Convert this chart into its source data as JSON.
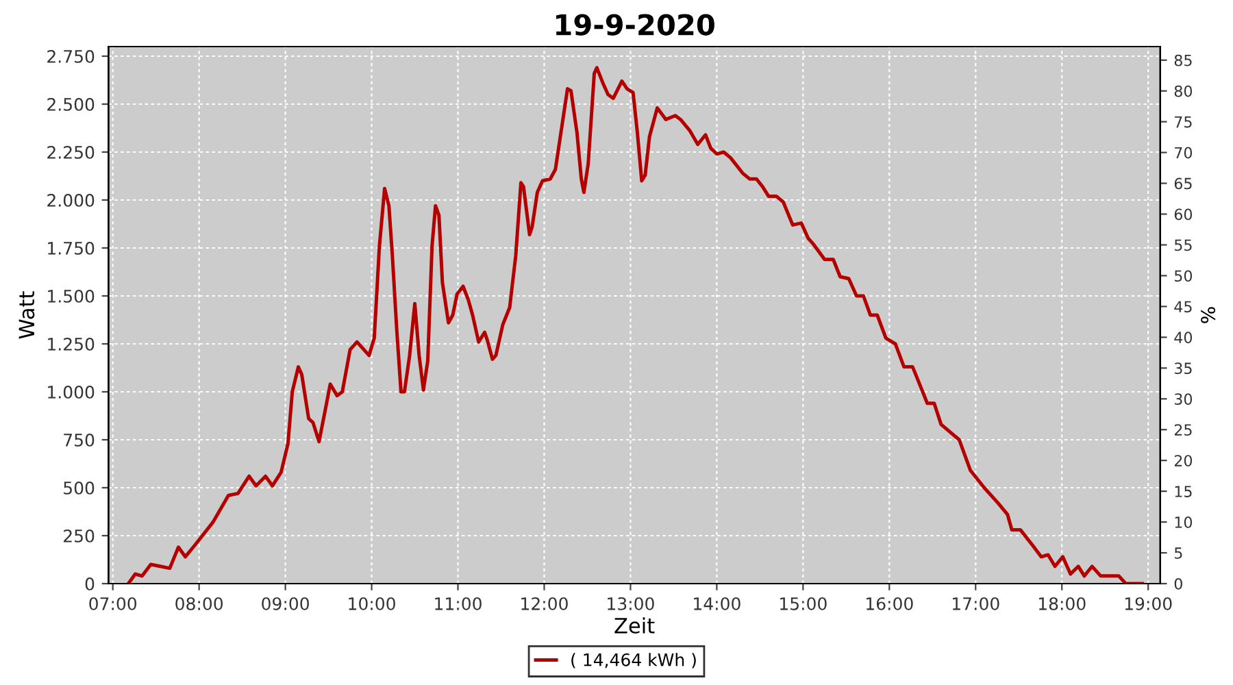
{
  "chart_data": {
    "type": "line",
    "title": "19-9-2020",
    "xlabel": "Zeit",
    "ylabel": "Watt",
    "y2label": "%",
    "x": [
      7.18,
      7.26,
      7.34,
      7.44,
      7.55,
      7.66,
      7.76,
      7.84,
      7.95,
      8.16,
      8.34,
      8.45,
      8.58,
      8.66,
      8.77,
      8.85,
      8.95,
      9.03,
      9.08,
      9.15,
      9.19,
      9.27,
      9.32,
      9.39,
      9.46,
      9.52,
      9.6,
      9.66,
      9.75,
      9.83,
      9.97,
      10.03,
      10.09,
      10.15,
      10.2,
      10.24,
      10.29,
      10.34,
      10.38,
      10.44,
      10.5,
      10.55,
      10.6,
      10.65,
      10.7,
      10.74,
      10.78,
      10.82,
      10.89,
      10.94,
      10.99,
      11.06,
      11.12,
      11.17,
      11.24,
      11.31,
      11.34,
      11.4,
      11.44,
      11.52,
      11.6,
      11.67,
      11.73,
      11.76,
      11.83,
      11.86,
      11.92,
      11.98,
      12.07,
      12.13,
      12.18,
      12.27,
      12.31,
      12.38,
      12.43,
      12.46,
      12.51,
      12.58,
      12.61,
      12.68,
      12.74,
      12.8,
      12.9,
      12.96,
      13.03,
      13.08,
      13.13,
      13.17,
      13.22,
      13.31,
      13.41,
      13.52,
      13.58,
      13.69,
      13.78,
      13.87,
      13.93,
      14.0,
      14.08,
      14.16,
      14.3,
      14.38,
      14.46,
      14.53,
      14.6,
      14.69,
      14.77,
      14.88,
      14.98,
      15.06,
      15.12,
      15.25,
      15.35,
      15.43,
      15.53,
      15.62,
      15.7,
      15.78,
      15.86,
      15.96,
      16.07,
      16.17,
      16.27,
      16.36,
      16.44,
      16.52,
      16.6,
      16.81,
      16.94,
      17.1,
      17.26,
      17.37,
      17.42,
      17.52,
      17.66,
      17.76,
      17.84,
      17.92,
      18.01,
      18.1,
      18.19,
      18.26,
      18.35,
      18.45,
      18.66,
      18.74,
      18.93
    ],
    "series": [
      {
        "name": "( 14,464 kWh )",
        "color": "#b50000",
        "values": [
          0,
          50,
          40,
          100,
          90,
          80,
          190,
          140,
          200,
          320,
          460,
          470,
          560,
          510,
          560,
          510,
          580,
          730,
          1000,
          1130,
          1090,
          860,
          840,
          740,
          900,
          1040,
          980,
          1000,
          1220,
          1260,
          1190,
          1280,
          1760,
          2060,
          1970,
          1710,
          1330,
          1000,
          1000,
          1190,
          1460,
          1190,
          1010,
          1160,
          1760,
          1970,
          1920,
          1570,
          1360,
          1400,
          1510,
          1550,
          1480,
          1400,
          1260,
          1310,
          1270,
          1170,
          1190,
          1350,
          1440,
          1710,
          2090,
          2070,
          1820,
          1860,
          2040,
          2100,
          2110,
          2160,
          2310,
          2580,
          2570,
          2350,
          2110,
          2040,
          2190,
          2660,
          2690,
          2610,
          2550,
          2530,
          2620,
          2580,
          2560,
          2350,
          2100,
          2130,
          2330,
          2480,
          2420,
          2440,
          2420,
          2360,
          2290,
          2340,
          2270,
          2240,
          2250,
          2220,
          2140,
          2110,
          2110,
          2070,
          2020,
          2020,
          1990,
          1870,
          1880,
          1800,
          1770,
          1690,
          1690,
          1600,
          1590,
          1500,
          1500,
          1400,
          1400,
          1280,
          1250,
          1130,
          1130,
          1030,
          940,
          940,
          830,
          750,
          590,
          500,
          420,
          360,
          280,
          280,
          200,
          140,
          150,
          90,
          140,
          50,
          90,
          40,
          90,
          40,
          40,
          0,
          0
        ]
      }
    ],
    "xlim": [
      6.95,
      19.14
    ],
    "ylim": [
      0,
      2800
    ],
    "y2lim": [
      0,
      87.2
    ],
    "xticks": [
      {
        "value": 7,
        "label": "07:00"
      },
      {
        "value": 8,
        "label": "08:00"
      },
      {
        "value": 9,
        "label": "09:00"
      },
      {
        "value": 10,
        "label": "10:00"
      },
      {
        "value": 11,
        "label": "11:00"
      },
      {
        "value": 12,
        "label": "12:00"
      },
      {
        "value": 13,
        "label": "13:00"
      },
      {
        "value": 14,
        "label": "14:00"
      },
      {
        "value": 15,
        "label": "15:00"
      },
      {
        "value": 16,
        "label": "16:00"
      },
      {
        "value": 17,
        "label": "17:00"
      },
      {
        "value": 18,
        "label": "18:00"
      },
      {
        "value": 19,
        "label": "19:00"
      }
    ],
    "yticks": [
      0,
      250,
      500,
      750,
      {
        "value": 1000,
        "label": "1.000"
      },
      {
        "value": 1250,
        "label": "1.250"
      },
      {
        "value": 1500,
        "label": "1.500"
      },
      {
        "value": 1750,
        "label": "1.750"
      },
      {
        "value": 2000,
        "label": "2.000"
      },
      {
        "value": 2250,
        "label": "2.250"
      },
      {
        "value": 2500,
        "label": "2.500"
      },
      {
        "value": 2750,
        "label": "2.750"
      }
    ],
    "y2ticks": [
      0,
      5,
      10,
      15,
      20,
      25,
      30,
      35,
      40,
      45,
      50,
      55,
      60,
      65,
      70,
      75,
      80,
      85
    ],
    "grid": true,
    "legend": "bottom",
    "marker": "none",
    "line_style": "solid"
  }
}
